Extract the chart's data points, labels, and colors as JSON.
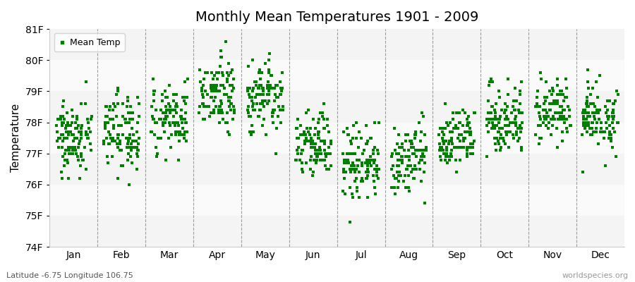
{
  "title": "Monthly Mean Temperatures 1901 - 2009",
  "ylabel": "Temperature",
  "xlabel_labels": [
    "Jan",
    "Feb",
    "Mar",
    "Apr",
    "May",
    "Jun",
    "Jul",
    "Aug",
    "Sep",
    "Oct",
    "Nov",
    "Dec"
  ],
  "subtitle": "Latitude -6.75 Longitude 106.75",
  "watermark": "worldspecies.org",
  "legend_label": "Mean Temp",
  "marker_color": "#008000",
  "marker": "s",
  "marker_size": 2.5,
  "ylim": [
    74,
    81
  ],
  "ytick_labels": [
    "74F",
    "75F",
    "76F",
    "77F",
    "78F",
    "79F",
    "80F",
    "81F"
  ],
  "ytick_values": [
    74,
    75,
    76,
    77,
    78,
    79,
    80,
    81
  ],
  "band_colors": [
    "#f4f4f4",
    "#fafafa"
  ],
  "bg_color": "#ffffff",
  "plot_bg": "#ffffff",
  "n_years": 109,
  "month_means": [
    77.5,
    77.7,
    78.2,
    78.9,
    78.8,
    77.3,
    76.7,
    76.8,
    77.5,
    78.1,
    78.4,
    78.1
  ],
  "month_stds": [
    0.55,
    0.65,
    0.55,
    0.55,
    0.6,
    0.55,
    0.65,
    0.55,
    0.5,
    0.55,
    0.5,
    0.5
  ]
}
